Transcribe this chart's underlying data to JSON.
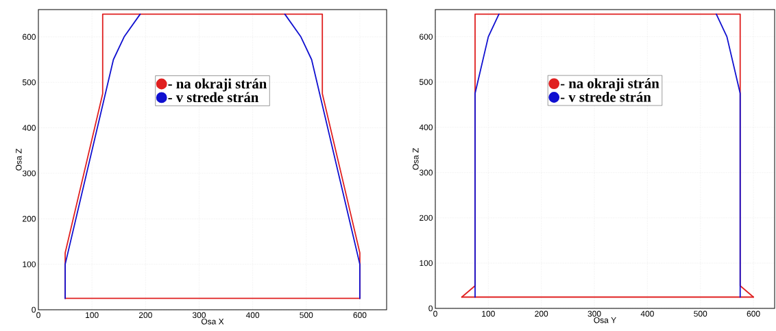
{
  "chart_data": [
    {
      "type": "line",
      "xlabel": "Osa X",
      "ylabel": "Osa Z",
      "xlim": [
        0,
        650
      ],
      "ylim": [
        0,
        660
      ],
      "xticks": [
        0,
        100,
        200,
        300,
        400,
        500,
        600
      ],
      "yticks": [
        0,
        100,
        200,
        300,
        400,
        500,
        600
      ],
      "grid": true,
      "legend": "top",
      "marker": "none",
      "line_style": "solid",
      "series": [
        {
          "name": "- na okraji strán",
          "color": "#e02020",
          "x": [
            50,
            50,
            120,
            120,
            530,
            530,
            600,
            600
          ],
          "values": [
            25,
            125,
            475,
            650,
            650,
            475,
            125,
            25
          ]
        },
        {
          "color": "#e02020",
          "x": [
            50,
            600
          ],
          "values": [
            25,
            25
          ]
        },
        {
          "name": "- v strede strán",
          "color": "#1010d0",
          "x": [
            50,
            50,
            140,
            160,
            190,
            325,
            460,
            490,
            510,
            600,
            600
          ],
          "values": [
            25,
            100,
            550,
            600,
            650,
            null,
            650,
            600,
            550,
            100,
            25
          ]
        }
      ]
    },
    {
      "type": "line",
      "xlabel": "Osa Y",
      "ylabel": "Osa Z",
      "xlim": [
        0,
        640
      ],
      "ylim": [
        0,
        660
      ],
      "xticks": [
        0,
        100,
        200,
        300,
        400,
        500,
        600
      ],
      "yticks": [
        0,
        100,
        200,
        300,
        400,
        500,
        600
      ],
      "grid": true,
      "legend": "top",
      "marker": "none",
      "line_style": "solid",
      "series": [
        {
          "name": "- na okraji strán",
          "color": "#e02020",
          "x": [
            50,
            75,
            75,
            575,
            575,
            600
          ],
          "values": [
            25,
            50,
            650,
            650,
            50,
            25
          ]
        },
        {
          "color": "#e02020",
          "x": [
            50,
            600
          ],
          "values": [
            25,
            25
          ]
        },
        {
          "name": "- v strede strán",
          "color": "#1010d0",
          "x": [
            75,
            75,
            100,
            120,
            325,
            530,
            550,
            575,
            575
          ],
          "values": [
            25,
            475,
            600,
            650,
            null,
            650,
            600,
            475,
            25
          ]
        }
      ]
    }
  ]
}
